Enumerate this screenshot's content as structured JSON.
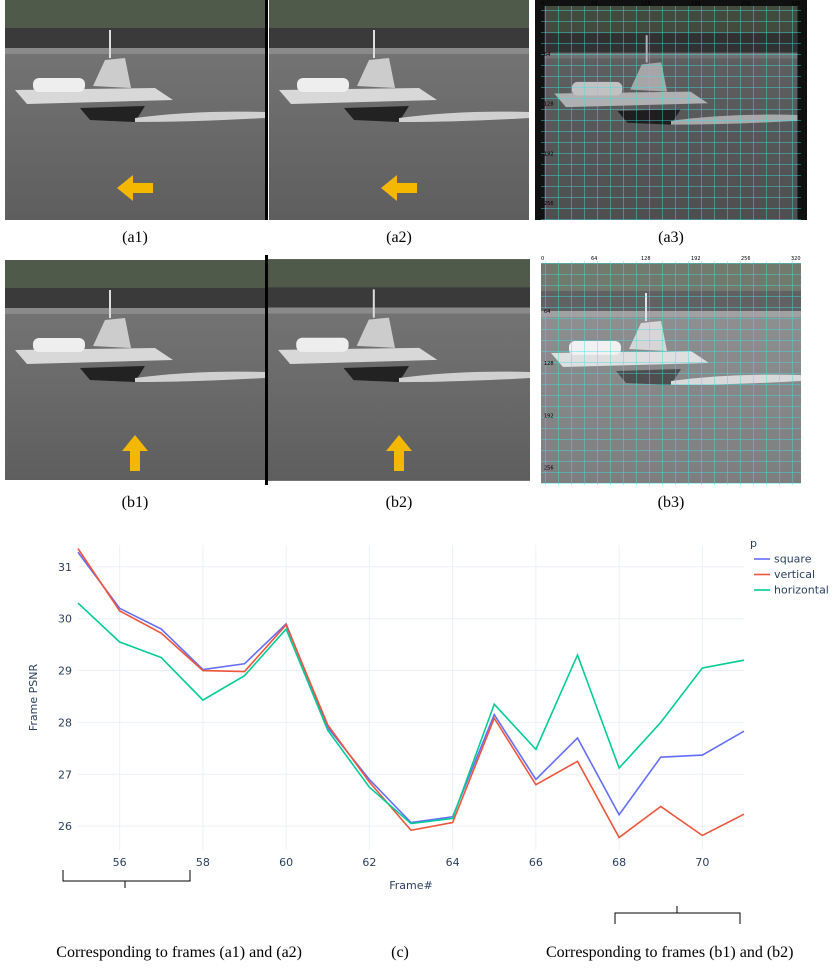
{
  "panel_labels": [
    "(a1)",
    "(a2)",
    "(a3)",
    "(b1)",
    "(b2)",
    "(b3)"
  ],
  "grid_ticks": [
    "0",
    "64",
    "128",
    "192",
    "256",
    "320"
  ],
  "chart_label": "(c)",
  "bracket_notes": [
    "Corresponding to frames (a1) and (a2)",
    "Corresponding to frames (b1) and (b2)"
  ],
  "chart_data": {
    "type": "line",
    "x_label": "Frame#",
    "y_label": "Frame PSNR",
    "x": [
      55,
      56,
      57,
      58,
      59,
      60,
      61,
      62,
      63,
      64,
      65,
      66,
      67,
      68,
      69,
      70,
      71
    ],
    "series": [
      {
        "name": "square",
        "color": "#636efa",
        "values": [
          31.28,
          30.2,
          29.8,
          29.02,
          29.13,
          29.9,
          27.9,
          26.9,
          26.07,
          26.18,
          28.15,
          26.9,
          27.7,
          26.22,
          27.33,
          27.37,
          27.83
        ]
      },
      {
        "name": "vertical",
        "color": "#ef553b",
        "values": [
          31.35,
          30.15,
          29.72,
          29.0,
          28.98,
          29.88,
          27.95,
          26.85,
          25.92,
          26.07,
          28.08,
          26.8,
          27.25,
          25.78,
          26.38,
          25.82,
          26.23
        ]
      },
      {
        "name": "horizontal",
        "color": "#00cc96",
        "values": [
          30.3,
          29.55,
          29.25,
          28.43,
          28.9,
          29.8,
          27.85,
          26.75,
          26.05,
          26.15,
          28.35,
          27.48,
          29.3,
          27.12,
          28.0,
          29.05,
          29.2
        ]
      }
    ],
    "legend_title": "p",
    "xlim": [
      55,
      71
    ],
    "xticks": [
      56,
      58,
      60,
      62,
      64,
      66,
      68,
      70
    ],
    "ylim": [
      25.54,
      31.42
    ],
    "yticks": [
      26,
      27,
      28,
      29,
      30,
      31
    ],
    "grid": true,
    "legend": "right"
  }
}
